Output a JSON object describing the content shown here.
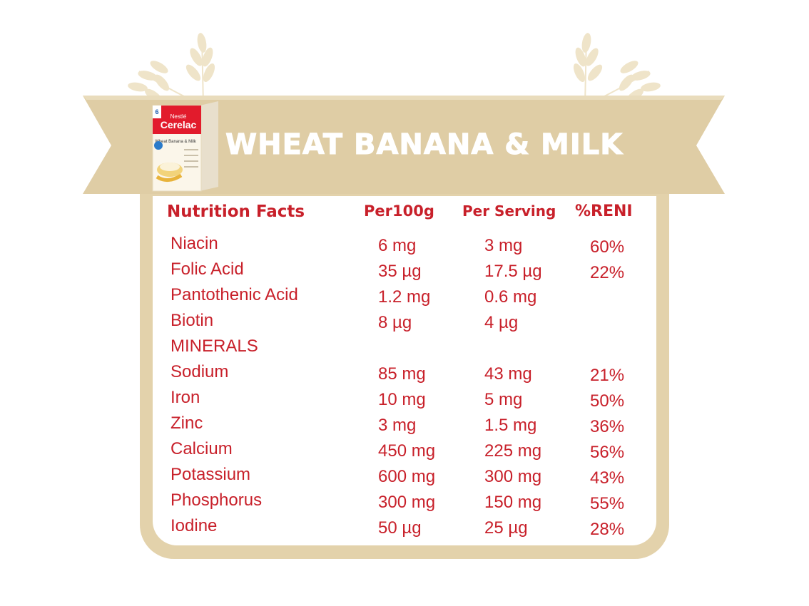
{
  "header": {
    "title": "WHEAT BANANA & MILK"
  },
  "product_image": {
    "brand": "Nestlé Cerelac",
    "variant": "Wheat Banana & Milk"
  },
  "table": {
    "headers": [
      "Nutrition Facts",
      "Per100g",
      "Per Serving",
      "%RENI"
    ],
    "rows": [
      {
        "name": "Niacin",
        "per100g": "6 mg",
        "per_serving": "3 mg",
        "reni": "60%"
      },
      {
        "name": "Folic Acid",
        "per100g": "35 µg",
        "per_serving": "17.5 µg",
        "reni": "22%"
      },
      {
        "name": "Pantothenic Acid",
        "per100g": "1.2 mg",
        "per_serving": "0.6 mg",
        "reni": ""
      },
      {
        "name": "Biotin",
        "per100g": "8 µg",
        "per_serving": "4 µg",
        "reni": ""
      },
      {
        "name": "MINERALS",
        "per100g": "",
        "per_serving": "",
        "reni": ""
      },
      {
        "name": "Sodium",
        "per100g": "85 mg",
        "per_serving": "43 mg",
        "reni": "21%"
      },
      {
        "name": "Iron",
        "per100g": "10 mg",
        "per_serving": "5 mg",
        "reni": "50%"
      },
      {
        "name": "Zinc",
        "per100g": "3 mg",
        "per_serving": "1.5 mg",
        "reni": "36%"
      },
      {
        "name": "Calcium",
        "per100g": "450 mg",
        "per_serving": "225 mg",
        "reni": "56%"
      },
      {
        "name": "Potassium",
        "per100g": "600 mg",
        "per_serving": "300 mg",
        "reni": "43%"
      },
      {
        "name": "Phosphorus",
        "per100g": "300 mg",
        "per_serving": "150 mg",
        "reni": "55%"
      },
      {
        "name": "Iodine",
        "per100g": "50 µg",
        "per_serving": "25 µg",
        "reni": "28%"
      }
    ]
  },
  "colors": {
    "accent_red": "#c8202a",
    "beige": "#e3d2ab",
    "ribbon": "#dfcda5"
  }
}
